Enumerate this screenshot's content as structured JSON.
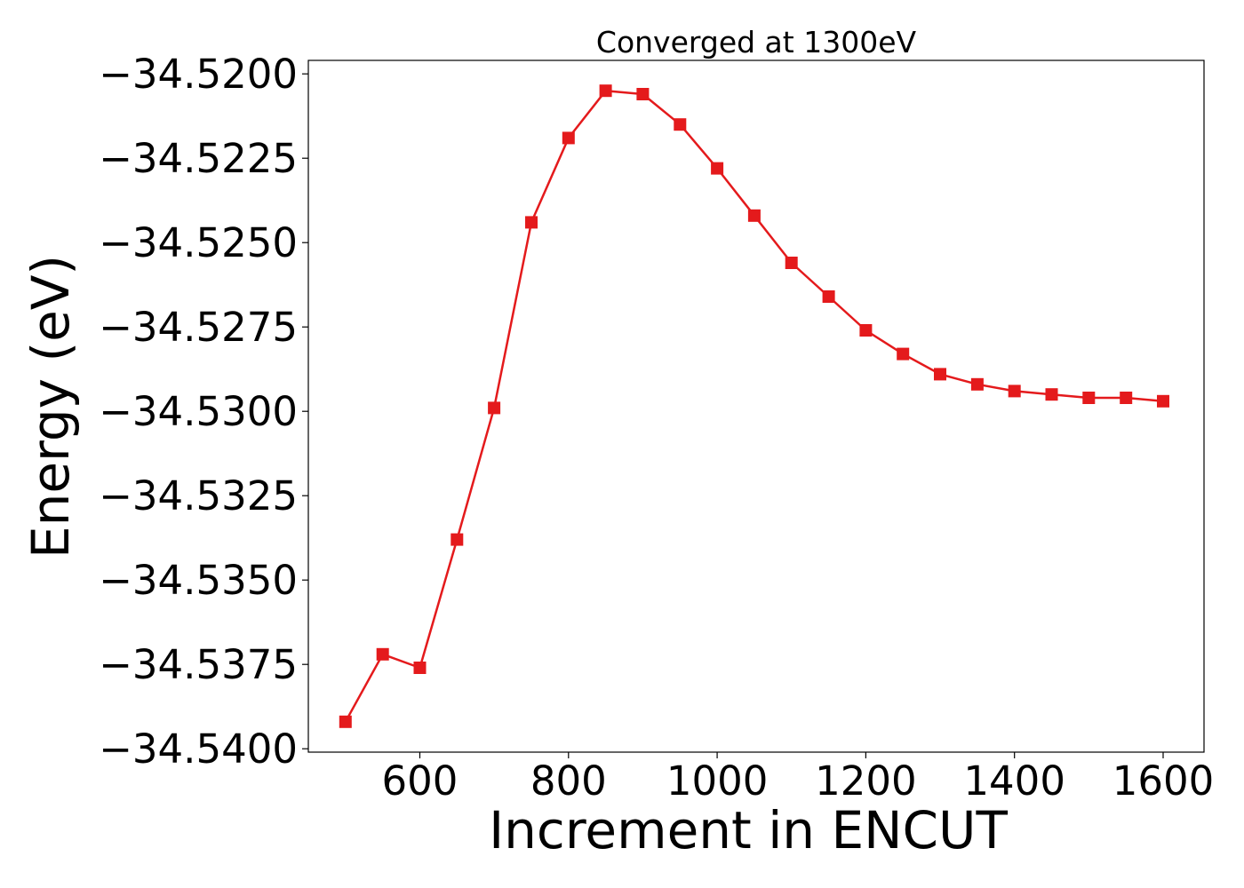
{
  "chart_data": {
    "type": "line",
    "title": "Converged at 1300eV",
    "xlabel": "Increment in ENCUT",
    "ylabel": "Energy (eV)",
    "x": [
      500,
      550,
      600,
      650,
      700,
      750,
      800,
      850,
      900,
      950,
      1000,
      1050,
      1100,
      1150,
      1200,
      1250,
      1300,
      1350,
      1400,
      1450,
      1500,
      1550,
      1600
    ],
    "series": [
      {
        "values": [
          -34.5392,
          -34.5372,
          -34.5376,
          -34.5338,
          -34.5299,
          -34.5244,
          -34.5219,
          -34.5205,
          -34.5206,
          -34.5215,
          -34.5228,
          -34.5242,
          -34.5256,
          -34.5266,
          -34.5276,
          -34.5283,
          -34.5289,
          -34.5292,
          -34.5294,
          -34.5295,
          -34.5296,
          -34.5296,
          -34.5297
        ],
        "color": "#e41a1c",
        "marker": "square"
      }
    ],
    "xlim": [
      450,
      1655
    ],
    "ylim": [
      -34.5401,
      -34.5196
    ],
    "xticks": [
      600,
      800,
      1000,
      1200,
      1400,
      1600
    ],
    "xtick_labels": [
      "600",
      "800",
      "1000",
      "1200",
      "1400",
      "1600"
    ],
    "yticks": [
      -34.52,
      -34.5225,
      -34.525,
      -34.5275,
      -34.53,
      -34.5325,
      -34.535,
      -34.5375,
      -34.54
    ],
    "ytick_labels": [
      "−34.5200",
      "−34.5225",
      "−34.5250",
      "−34.5275",
      "−34.5300",
      "−34.5325",
      "−34.5350",
      "−34.5375",
      "−34.5400"
    ],
    "grid": false,
    "legend": "none"
  }
}
